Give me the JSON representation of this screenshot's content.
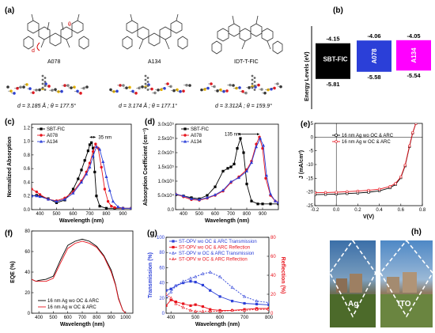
{
  "panels": {
    "a": "(a)",
    "b": "(b)",
    "c": "(c)",
    "d": "(d)",
    "e": "(e)",
    "f": "(f)",
    "g": "(g)",
    "h": "(h)"
  },
  "panel_a": {
    "d_symbol": "d",
    "theta_symbol": "θ",
    "molecules": [
      {
        "name": "A078",
        "geometry": "d = 3.185 Å ; θ = 177.5°"
      },
      {
        "name": "A134",
        "geometry": "d = 3.174 Å ; θ = 177.1°"
      },
      {
        "name": "IDT-T-FIC",
        "geometry": "d = 3.312Å ; θ = 159.9°"
      }
    ]
  },
  "panel_h": {
    "left_label": "Ag",
    "right_label": "ITO"
  },
  "colors": {
    "black": "#000000",
    "red": "#e8141d",
    "blue": "#2b3fd8",
    "magenta": "#ff00ff"
  },
  "chart_data": [
    {
      "panel": "c",
      "type": "line",
      "title": "",
      "xlabel": "Wavelength (nm)",
      "ylabel": "Normalized Absorption",
      "xlim": [
        350,
        950
      ],
      "ylim": [
        0,
        1.25
      ],
      "xticks": [
        400,
        500,
        600,
        700,
        800,
        900
      ],
      "yticks": [
        0.0,
        0.2,
        0.4,
        0.6,
        0.8,
        1.0,
        1.2
      ],
      "annotation": "35 nm",
      "legend_position": "top-left",
      "series": [
        {
          "name": "SBT-FIC",
          "color": "#000000",
          "marker": "square",
          "x": [
            350,
            380,
            400,
            450,
            500,
            550,
            600,
            630,
            650,
            670,
            690,
            700,
            710,
            720,
            730,
            740,
            760,
            800,
            850,
            900,
            950
          ],
          "y": [
            0.2,
            0.21,
            0.2,
            0.16,
            0.1,
            0.14,
            0.3,
            0.45,
            0.58,
            0.72,
            0.86,
            0.95,
            0.98,
            0.9,
            0.55,
            0.2,
            0.05,
            0.02,
            0.02,
            0.02,
            0.02
          ]
        },
        {
          "name": "A078",
          "color": "#e8141d",
          "marker": "circle",
          "x": [
            350,
            380,
            400,
            450,
            500,
            550,
            600,
            650,
            680,
            700,
            720,
            735,
            750,
            770,
            790,
            810,
            830,
            850,
            900,
            950
          ],
          "y": [
            0.3,
            0.26,
            0.22,
            0.15,
            0.13,
            0.17,
            0.26,
            0.42,
            0.55,
            0.68,
            0.85,
            0.96,
            0.9,
            0.62,
            0.3,
            0.12,
            0.05,
            0.03,
            0.02,
            0.02
          ]
        },
        {
          "name": "A134",
          "color": "#2b3fd8",
          "marker": "triangle",
          "x": [
            350,
            380,
            400,
            450,
            500,
            550,
            600,
            650,
            680,
            700,
            720,
            740,
            760,
            780,
            800,
            820,
            840,
            870,
            900,
            950
          ],
          "y": [
            0.2,
            0.2,
            0.19,
            0.15,
            0.12,
            0.15,
            0.24,
            0.4,
            0.52,
            0.62,
            0.78,
            0.92,
            0.88,
            0.7,
            0.48,
            0.28,
            0.12,
            0.04,
            0.02,
            0.02
          ]
        }
      ]
    },
    {
      "panel": "b",
      "type": "bar",
      "title": "",
      "xlabel": "",
      "ylabel": "Energy Levels (eV)",
      "categories": [
        "SBT-FIC",
        "A078",
        "A134"
      ],
      "lumo": [
        -4.15,
        -4.06,
        -4.05
      ],
      "homo": [
        -5.81,
        -5.58,
        -5.54
      ],
      "colors": [
        "#000000",
        "#2b3fd8",
        "#ff00ff"
      ]
    },
    {
      "panel": "d",
      "type": "line",
      "title": "",
      "xlabel": "Wavelength (nm)",
      "ylabel": "Absorption Coefficient (cm⁻¹)",
      "xlim": [
        350,
        1000
      ],
      "ylim": [
        0,
        300000
      ],
      "xticks": [
        400,
        500,
        600,
        700,
        800,
        900
      ],
      "yticks": [
        0,
        50000,
        100000,
        150000,
        200000,
        250000,
        300000
      ],
      "ytick_labels": [
        "0.0",
        "5.0x10⁴",
        "1.0x10⁵",
        "1.5x10⁵",
        "2.0x10⁵",
        "2.5x10⁵",
        "3.0x10⁵"
      ],
      "annotation": "135 nm",
      "legend_position": "top-left",
      "series": [
        {
          "name": "SBT-FIC",
          "color": "#000000",
          "marker": "square",
          "x": [
            350,
            400,
            450,
            500,
            550,
            600,
            650,
            680,
            700,
            720,
            740,
            760,
            780,
            800,
            830,
            870,
            900,
            950,
            1000
          ],
          "y": [
            52000,
            48000,
            42000,
            38000,
            50000,
            80000,
            135000,
            145000,
            150000,
            160000,
            215000,
            250000,
            200000,
            90000,
            30000,
            20000,
            20000,
            20000,
            20000
          ]
        },
        {
          "name": "A078",
          "color": "#e8141d",
          "marker": "circle",
          "x": [
            350,
            400,
            450,
            500,
            550,
            600,
            650,
            700,
            750,
            800,
            830,
            860,
            880,
            900,
            920,
            950,
            980,
            1000
          ],
          "y": [
            55000,
            45000,
            35000,
            33000,
            40000,
            50000,
            65000,
            95000,
            115000,
            140000,
            170000,
            230000,
            255000,
            215000,
            110000,
            50000,
            30000,
            25000
          ]
        },
        {
          "name": "A134",
          "color": "#2b3fd8",
          "marker": "triangle",
          "x": [
            350,
            400,
            450,
            500,
            550,
            600,
            650,
            700,
            750,
            800,
            830,
            860,
            885,
            905,
            925,
            950,
            980,
            1000
          ],
          "y": [
            55000,
            48000,
            38000,
            35000,
            42000,
            52000,
            68000,
            98000,
            112000,
            135000,
            165000,
            220000,
            250000,
            225000,
            120000,
            55000,
            30000,
            25000
          ]
        }
      ]
    },
    {
      "panel": "e",
      "type": "line",
      "title": "",
      "xlabel": "V(V)",
      "ylabel": "J (mA/cm²)",
      "xlim": [
        -0.2,
        0.8
      ],
      "ylim": [
        -25,
        5
      ],
      "xticks": [
        -0.2,
        0.0,
        0.2,
        0.4,
        0.6,
        0.8
      ],
      "xtick_labels": [
        "-0.2",
        "0.0",
        "0.2",
        "0.4",
        "0.6",
        "0.8"
      ],
      "yticks": [
        -25,
        -20,
        -15,
        -10,
        -5,
        0,
        5
      ],
      "legend_position": "top-left",
      "series": [
        {
          "name": "16 nm Ag wo OC & ARC",
          "color": "#000000",
          "marker": "open-square",
          "x": [
            -0.2,
            -0.1,
            0.0,
            0.1,
            0.2,
            0.3,
            0.4,
            0.5,
            0.55,
            0.6,
            0.64,
            0.68,
            0.71,
            0.74
          ],
          "y": [
            -21.0,
            -20.9,
            -20.8,
            -20.6,
            -20.4,
            -20.1,
            -19.6,
            -18.5,
            -17.3,
            -14.8,
            -10.5,
            -3.5,
            1.5,
            5.0
          ]
        },
        {
          "name": "16 nm Ag w OC & ARC",
          "color": "#e8141d",
          "marker": "open-circle",
          "x": [
            -0.2,
            -0.1,
            0.0,
            0.1,
            0.2,
            0.3,
            0.4,
            0.5,
            0.55,
            0.6,
            0.64,
            0.68,
            0.71,
            0.74
          ],
          "y": [
            -20.3,
            -20.2,
            -20.1,
            -19.9,
            -19.7,
            -19.4,
            -19.0,
            -18.0,
            -16.9,
            -14.5,
            -10.2,
            -3.2,
            1.6,
            5.0
          ]
        }
      ]
    },
    {
      "panel": "f",
      "type": "line",
      "title": "",
      "xlabel": "Wavelength (nm)",
      "ylabel": "EQE (%)",
      "xlim": [
        350,
        1050
      ],
      "ylim": [
        0,
        80
      ],
      "xticks": [
        400,
        500,
        600,
        700,
        800,
        900,
        1000
      ],
      "yticks": [
        0,
        20,
        40,
        60,
        80
      ],
      "legend_position": "bottom-left",
      "series": [
        {
          "name": "16 nm Ag wo OC & ARC",
          "color": "#000000",
          "marker": "none",
          "x": [
            350,
            380,
            400,
            450,
            500,
            550,
            600,
            650,
            700,
            750,
            800,
            850,
            900,
            930,
            950,
            980,
            1000
          ],
          "y": [
            33,
            31,
            32,
            33,
            36,
            52,
            66,
            70,
            72,
            70,
            65,
            56,
            42,
            28,
            15,
            3,
            0
          ]
        },
        {
          "name": "16 nm Ag w OC & ARC",
          "color": "#e8141d",
          "marker": "none",
          "x": [
            350,
            380,
            400,
            450,
            500,
            550,
            600,
            650,
            700,
            750,
            800,
            850,
            900,
            930,
            950,
            980,
            1000
          ],
          "y": [
            33,
            31,
            31,
            31,
            34,
            49,
            63,
            68,
            70,
            68,
            64,
            55,
            40,
            27,
            14,
            3,
            0
          ]
        }
      ]
    },
    {
      "panel": "g",
      "type": "line",
      "title": "",
      "xlabel": "Wavelength (nm)",
      "ylabel": "Transmission (%)",
      "y2label": "Reflection (%)",
      "xlim": [
        380,
        800
      ],
      "ylim": [
        0,
        100
      ],
      "y2lim": [
        0,
        80
      ],
      "xticks": [
        400,
        500,
        600,
        700,
        800
      ],
      "yticks": [
        0,
        20,
        40,
        60,
        80,
        100
      ],
      "y2ticks": [
        0,
        20,
        40,
        60,
        80
      ],
      "legend_position": "top-left",
      "series": [
        {
          "name": "ST-OPV wo OC & ARC Transmission",
          "color": "#2b3fd8",
          "axis": "left",
          "marker": "filled-square",
          "dashed": false,
          "x": [
            380,
            400,
            420,
            450,
            480,
            500,
            530,
            560,
            600,
            650,
            700,
            750,
            800
          ],
          "y": [
            30,
            32,
            36,
            40,
            42,
            41,
            37,
            30,
            22,
            16,
            13,
            12,
            11
          ]
        },
        {
          "name": "ST-OPV wo OC & ARC Reflection",
          "color": "#e8141d",
          "axis": "right",
          "marker": "filled-square",
          "dashed": false,
          "x": [
            380,
            400,
            420,
            450,
            480,
            500,
            530,
            560,
            600,
            650,
            700,
            750,
            800
          ],
          "y": [
            8,
            14,
            12,
            10,
            8,
            9,
            7,
            4,
            3,
            3,
            4,
            5,
            5
          ]
        },
        {
          "name": "ST-OPV w OC & ARC Transmission",
          "color": "#2b3fd8",
          "axis": "left",
          "marker": "open-triangle",
          "dashed": true,
          "x": [
            380,
            400,
            420,
            450,
            480,
            500,
            530,
            560,
            600,
            650,
            700,
            750,
            800
          ],
          "y": [
            22,
            28,
            36,
            42,
            46,
            48,
            52,
            54,
            48,
            34,
            22,
            16,
            14
          ]
        },
        {
          "name": "ST-OPV w OC & ARC Reflection",
          "color": "#e8141d",
          "axis": "right",
          "marker": "open-triangle",
          "dashed": true,
          "x": [
            380,
            400,
            420,
            450,
            480,
            500,
            530,
            560,
            600,
            650,
            700,
            750,
            800
          ],
          "y": [
            20,
            16,
            10,
            6,
            3,
            2,
            2,
            2,
            2,
            3,
            3,
            4,
            4
          ]
        }
      ]
    }
  ]
}
